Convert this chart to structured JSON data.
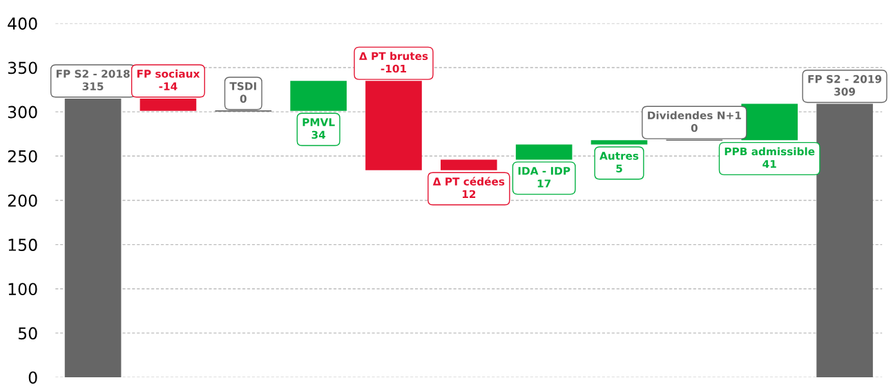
{
  "chart_data": {
    "type": "bar",
    "categories": [
      "FP S2 - 2018",
      "FP sociaux",
      "TSDI",
      "PMVL",
      "Δ PT brutes",
      "Δ PT cédées",
      "IDA - IDP",
      "Autres",
      "Dividendes N+1",
      "PPB admissible",
      "FP S2 - 2019"
    ],
    "values": [
      315,
      -14,
      0,
      34,
      -101,
      12,
      17,
      5,
      0,
      41,
      309
    ],
    "base": [
      0,
      315,
      301,
      301,
      335,
      234,
      246,
      263,
      268,
      268,
      0
    ],
    "colors": [
      "#666666",
      "#e4112f",
      "#666666",
      "#00b140",
      "#e4112f",
      "#e4112f",
      "#00b140",
      "#00b140",
      "#666666",
      "#00b140",
      "#666666"
    ],
    "data_labels": true,
    "ylim": [
      0,
      400
    ],
    "yticks": [
      0,
      50,
      100,
      150,
      200,
      250,
      300,
      350,
      400
    ],
    "grid": "y",
    "tick_labels": "y"
  }
}
